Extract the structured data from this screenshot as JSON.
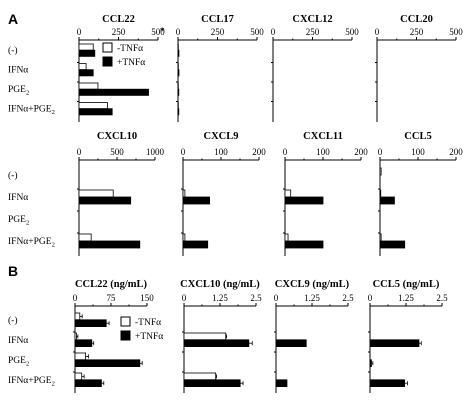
{
  "sections": [
    {
      "letter": "A"
    },
    {
      "letter": "B"
    }
  ],
  "legend": {
    "minus": "-TNFα",
    "plus": "+TNFα"
  },
  "row_labels": [
    {
      "main": "(-)",
      "sub": "",
      "tail": ""
    },
    {
      "main": "IFNα",
      "sub": "",
      "tail": ""
    },
    {
      "main": "PGE",
      "sub": "2",
      "tail": ""
    },
    {
      "main": "IFNα+PGE",
      "sub": "2",
      "tail": ""
    }
  ],
  "colors": {
    "minus_fill": "#ffffff",
    "plus_fill": "#000000",
    "stroke": "#000000"
  },
  "chart_data": [
    {
      "type": "bar",
      "title": "CCL22",
      "axis_ticks": [
        "0",
        "250",
        "500"
      ],
      "xlim": [
        0,
        500
      ],
      "annotation": "*",
      "series": [
        {
          "name": "-TNFα",
          "values": [
            90,
            45,
            120,
            180
          ]
        },
        {
          "name": "+TNFα",
          "values": [
            100,
            90,
            440,
            210
          ]
        }
      ]
    },
    {
      "type": "bar",
      "title": "CCL17",
      "axis_ticks": [
        "0",
        "250",
        "500"
      ],
      "xlim": [
        0,
        500
      ],
      "series": [
        {
          "name": "-TNFα",
          "values": [
            2,
            2,
            2,
            2
          ]
        },
        {
          "name": "+TNFα",
          "values": [
            6,
            6,
            5,
            5
          ]
        }
      ]
    },
    {
      "type": "bar",
      "title": "CXCL12",
      "axis_ticks": [
        "0",
        "250",
        "500"
      ],
      "xlim": [
        0,
        500
      ],
      "series": [
        {
          "name": "-TNFα",
          "values": [
            0,
            0,
            0,
            0
          ]
        },
        {
          "name": "+TNFα",
          "values": [
            0,
            0,
            0,
            0
          ]
        }
      ]
    },
    {
      "type": "bar",
      "title": "CCL20",
      "axis_ticks": [
        "0",
        "250",
        "500"
      ],
      "xlim": [
        0,
        500
      ],
      "series": [
        {
          "name": "-TNFα",
          "values": [
            0,
            0,
            0,
            0
          ]
        },
        {
          "name": "+TNFα",
          "values": [
            0,
            0,
            0,
            0
          ]
        }
      ]
    },
    {
      "type": "bar",
      "title": "CXCL10",
      "axis_ticks": [
        "0",
        "500",
        "1000"
      ],
      "xlim": [
        0,
        1000
      ],
      "series": [
        {
          "name": "-TNFα",
          "values": [
            0,
            450,
            0,
            160
          ]
        },
        {
          "name": "+TNFα",
          "values": [
            0,
            680,
            0,
            800
          ]
        }
      ]
    },
    {
      "type": "bar",
      "title": "CXCL9",
      "axis_ticks": [
        "0",
        "100",
        "200"
      ],
      "xlim": [
        0,
        200
      ],
      "series": [
        {
          "name": "-TNFα",
          "values": [
            0,
            5,
            0,
            5
          ]
        },
        {
          "name": "+TNFα",
          "values": [
            0,
            70,
            0,
            65
          ]
        }
      ]
    },
    {
      "type": "bar",
      "title": "CXCL11",
      "axis_ticks": [
        "0",
        "100",
        "200"
      ],
      "xlim": [
        0,
        200
      ],
      "series": [
        {
          "name": "-TNFα",
          "values": [
            0,
            15,
            0,
            8
          ]
        },
        {
          "name": "+TNFα",
          "values": [
            0,
            100,
            0,
            100
          ]
        }
      ]
    },
    {
      "type": "bar",
      "title": "CCL5",
      "axis_ticks": [
        "0",
        "100",
        "200"
      ],
      "xlim": [
        0,
        200
      ],
      "series": [
        {
          "name": "-TNFα",
          "values": [
            3,
            2,
            0,
            3
          ]
        },
        {
          "name": "+TNFα",
          "values": [
            0,
            38,
            0,
            65
          ]
        }
      ]
    },
    {
      "type": "bar",
      "title": "CCL22 (ng/mL)",
      "axis_ticks": [
        "0",
        "75",
        "150"
      ],
      "xlim": [
        0,
        150
      ],
      "series": [
        {
          "name": "-TNFα",
          "values": [
            10,
            3,
            22,
            14
          ],
          "errors": [
            5,
            3,
            6,
            5
          ]
        },
        {
          "name": "+TNFα",
          "values": [
            65,
            35,
            135,
            55
          ],
          "errors": [
            6,
            4,
            5,
            5
          ]
        }
      ]
    },
    {
      "type": "bar",
      "title": "CXCL10 (ng/mL)",
      "axis_ticks": [
        "0",
        "1.25",
        "2.5"
      ],
      "xlim": [
        0,
        2.5
      ],
      "series": [
        {
          "name": "-TNFα",
          "values": [
            0,
            1.45,
            0,
            1.1
          ],
          "errors": [
            0,
            0.03,
            0,
            0.03
          ]
        },
        {
          "name": "+TNFα",
          "values": [
            0,
            2.25,
            0,
            1.95
          ],
          "errors": [
            0,
            0.12,
            0,
            0.1
          ]
        }
      ]
    },
    {
      "type": "bar",
      "title": "CXCL9 (ng/mL)",
      "axis_ticks": [
        "0",
        "1.25",
        "2.5"
      ],
      "xlim": [
        0,
        2.5
      ],
      "series": [
        {
          "name": "-TNFα",
          "values": [
            0,
            0,
            0,
            0
          ],
          "errors": [
            0,
            0,
            0,
            0
          ]
        },
        {
          "name": "+TNFα",
          "values": [
            0,
            1.05,
            0,
            0.38
          ],
          "errors": [
            0,
            0,
            0,
            0
          ]
        }
      ]
    },
    {
      "type": "bar",
      "title": "CCL5 (ng/mL)",
      "axis_ticks": [
        "0",
        "1.25",
        "2.5"
      ],
      "xlim": [
        0,
        2.5
      ],
      "series": [
        {
          "name": "-TNFα",
          "values": [
            0,
            0,
            0,
            0
          ],
          "errors": [
            0,
            0,
            0,
            0
          ]
        },
        {
          "name": "+TNFα",
          "values": [
            0,
            1.7,
            0.05,
            1.2
          ],
          "errors": [
            0,
            0.08,
            0.05,
            0.1
          ]
        }
      ]
    }
  ]
}
